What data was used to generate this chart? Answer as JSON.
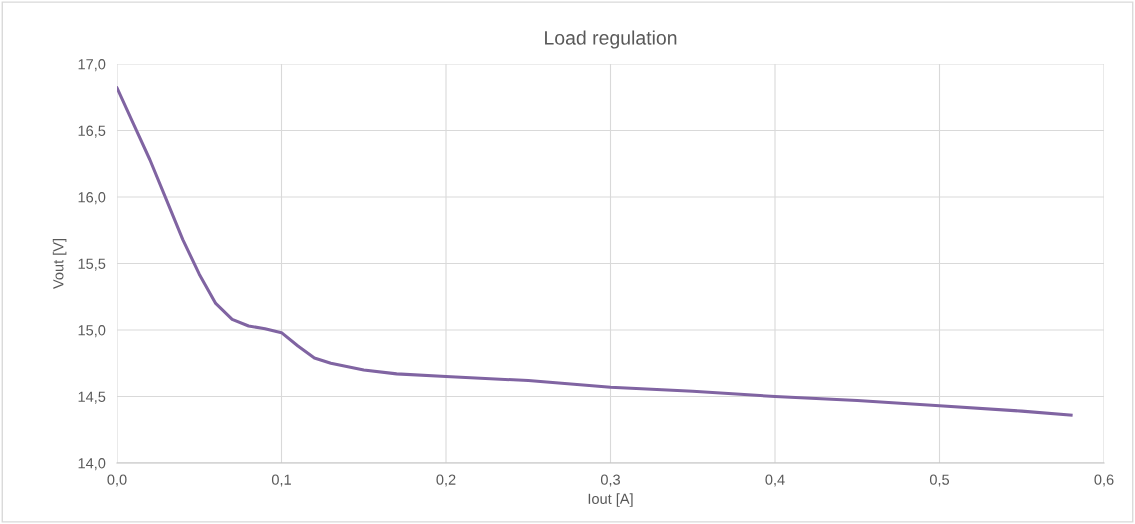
{
  "chart_data": {
    "type": "line",
    "title": "Load regulation",
    "xlabel": "Iout [A]",
    "ylabel": "Vout [V]",
    "x": [
      0.0,
      0.01,
      0.02,
      0.03,
      0.04,
      0.05,
      0.06,
      0.07,
      0.08,
      0.09,
      0.1,
      0.11,
      0.12,
      0.13,
      0.15,
      0.17,
      0.2,
      0.25,
      0.3,
      0.35,
      0.4,
      0.45,
      0.5,
      0.55,
      0.58
    ],
    "series": [
      {
        "color": "#8064a2",
        "values": [
          16.82,
          16.55,
          16.28,
          15.98,
          15.68,
          15.42,
          15.2,
          15.08,
          15.03,
          15.01,
          14.98,
          14.88,
          14.79,
          14.75,
          14.7,
          14.67,
          14.65,
          14.62,
          14.57,
          14.54,
          14.5,
          14.47,
          14.43,
          14.39,
          14.36
        ]
      }
    ],
    "xlim": [
      0.0,
      0.6
    ],
    "ylim": [
      14.0,
      17.0
    ],
    "xticks": [
      {
        "value": 0.0,
        "label": "0,0"
      },
      {
        "value": 0.1,
        "label": "0,1"
      },
      {
        "value": 0.2,
        "label": "0,2"
      },
      {
        "value": 0.3,
        "label": "0,3"
      },
      {
        "value": 0.4,
        "label": "0,4"
      },
      {
        "value": 0.5,
        "label": "0,5"
      },
      {
        "value": 0.6,
        "label": "0,6"
      }
    ],
    "yticks": [
      {
        "value": 14.0,
        "label": "14,0"
      },
      {
        "value": 14.5,
        "label": "14,5"
      },
      {
        "value": 15.0,
        "label": "15,0"
      },
      {
        "value": 15.5,
        "label": "15,5"
      },
      {
        "value": 16.0,
        "label": "16,0"
      },
      {
        "value": 16.5,
        "label": "16,5"
      },
      {
        "value": 17.0,
        "label": "17,0"
      }
    ],
    "grid": true,
    "marker": "none",
    "line_style": "solid",
    "legend": false
  }
}
